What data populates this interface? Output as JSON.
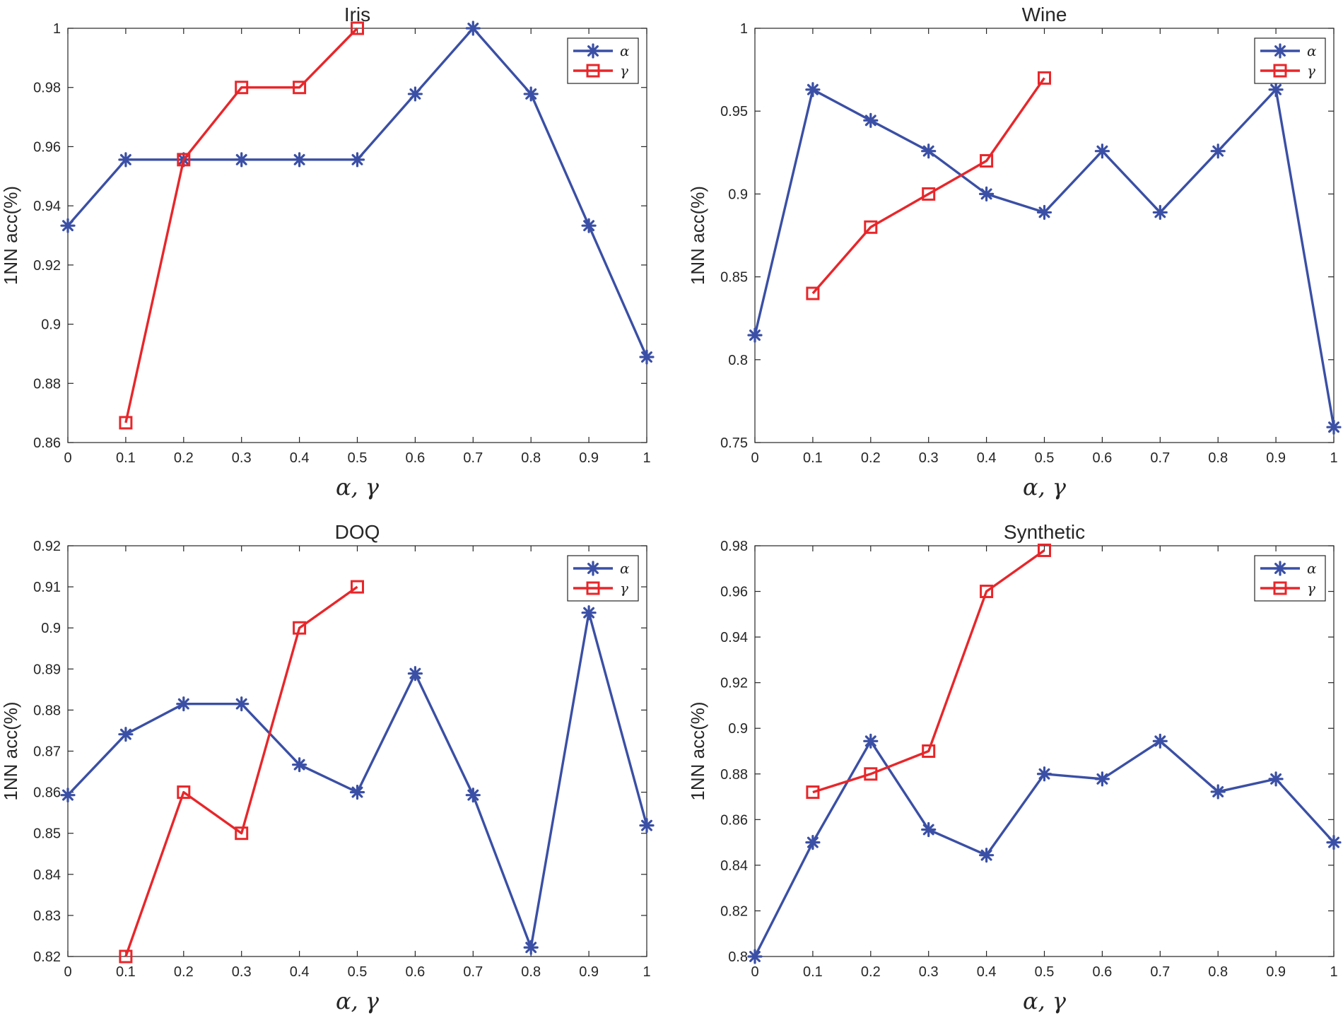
{
  "chart_data": [
    {
      "type": "line",
      "title": "Iris",
      "xlabel": "α, γ",
      "ylabel": "1NN acc(%)",
      "xlim": [
        0,
        1
      ],
      "ylim": [
        0.86,
        1
      ],
      "xticks": [
        0,
        0.1,
        0.2,
        0.3,
        0.4,
        0.5,
        0.6,
        0.7,
        0.8,
        0.9,
        1
      ],
      "xtick_labels": [
        "0",
        "0.1",
        "0.2",
        "0.3",
        "0.4",
        "0.5",
        "0.6",
        "0.7",
        "0.8",
        "0.9",
        "1"
      ],
      "yticks": [
        0.86,
        0.88,
        0.9,
        0.92,
        0.94,
        0.96,
        0.98,
        1
      ],
      "ytick_labels": [
        "0.86",
        "0.88",
        "0.9",
        "0.92",
        "0.94",
        "0.96",
        "0.98",
        "1"
      ],
      "legend_position": "top-right",
      "series": [
        {
          "name": "α",
          "marker": "asterisk",
          "color": "#3a4fa5",
          "x": [
            0,
            0.1,
            0.2,
            0.3,
            0.4,
            0.5,
            0.6,
            0.7,
            0.8,
            0.9,
            1
          ],
          "values": [
            0.9333,
            0.9556,
            0.9556,
            0.9556,
            0.9556,
            0.9556,
            0.9778,
            1.0,
            0.9778,
            0.9333,
            0.8889
          ]
        },
        {
          "name": "γ",
          "marker": "square",
          "color": "#e8262a",
          "x": [
            0.1,
            0.2,
            0.3,
            0.4,
            0.5
          ],
          "values": [
            0.8667,
            0.9556,
            0.98,
            0.98,
            1.0
          ]
        }
      ]
    },
    {
      "type": "line",
      "title": "Wine",
      "xlabel": "α, γ",
      "ylabel": "1NN acc(%)",
      "xlim": [
        0,
        1
      ],
      "ylim": [
        0.75,
        1
      ],
      "xticks": [
        0,
        0.1,
        0.2,
        0.3,
        0.4,
        0.5,
        0.6,
        0.7,
        0.8,
        0.9,
        1
      ],
      "xtick_labels": [
        "0",
        "0.1",
        "0.2",
        "0.3",
        "0.4",
        "0.5",
        "0.6",
        "0.7",
        "0.8",
        "0.9",
        "1"
      ],
      "yticks": [
        0.75,
        0.8,
        0.85,
        0.9,
        0.95,
        1
      ],
      "ytick_labels": [
        "0.75",
        "0.8",
        "0.85",
        "0.9",
        "0.95",
        "1"
      ],
      "legend_position": "top-right",
      "series": [
        {
          "name": "α",
          "marker": "asterisk",
          "color": "#3a4fa5",
          "x": [
            0,
            0.1,
            0.2,
            0.3,
            0.4,
            0.5,
            0.6,
            0.7,
            0.8,
            0.9,
            1
          ],
          "values": [
            0.8148,
            0.963,
            0.9444,
            0.9259,
            0.9,
            0.8889,
            0.9259,
            0.8889,
            0.9259,
            0.963,
            0.7593
          ]
        },
        {
          "name": "γ",
          "marker": "square",
          "color": "#e8262a",
          "x": [
            0.1,
            0.2,
            0.3,
            0.4,
            0.5
          ],
          "values": [
            0.84,
            0.88,
            0.9,
            0.92,
            0.97
          ]
        }
      ]
    },
    {
      "type": "line",
      "title": "DOQ",
      "xlabel": "α, γ",
      "ylabel": "1NN acc(%)",
      "xlim": [
        0,
        1
      ],
      "ylim": [
        0.82,
        0.92
      ],
      "xticks": [
        0,
        0.1,
        0.2,
        0.3,
        0.4,
        0.5,
        0.6,
        0.7,
        0.8,
        0.9,
        1
      ],
      "xtick_labels": [
        "0",
        "0.1",
        "0.2",
        "0.3",
        "0.4",
        "0.5",
        "0.6",
        "0.7",
        "0.8",
        "0.9",
        "1"
      ],
      "yticks": [
        0.82,
        0.83,
        0.84,
        0.85,
        0.86,
        0.87,
        0.88,
        0.89,
        0.9,
        0.91,
        0.92
      ],
      "ytick_labels": [
        "0.82",
        "0.83",
        "0.84",
        "0.85",
        "0.86",
        "0.87",
        "0.88",
        "0.89",
        "0.9",
        "0.91",
        "0.92"
      ],
      "legend_position": "top-right",
      "series": [
        {
          "name": "α",
          "marker": "asterisk",
          "color": "#3a4fa5",
          "x": [
            0,
            0.1,
            0.2,
            0.3,
            0.4,
            0.5,
            0.6,
            0.7,
            0.8,
            0.9,
            1
          ],
          "values": [
            0.8593,
            0.8741,
            0.8815,
            0.8815,
            0.8667,
            0.86,
            0.8889,
            0.8593,
            0.8222,
            0.9037,
            0.8519
          ]
        },
        {
          "name": "γ",
          "marker": "square",
          "color": "#e8262a",
          "x": [
            0.1,
            0.2,
            0.3,
            0.4,
            0.5
          ],
          "values": [
            0.82,
            0.86,
            0.85,
            0.9,
            0.91
          ]
        }
      ]
    },
    {
      "type": "line",
      "title": "Synthetic",
      "xlabel": "α, γ",
      "ylabel": "1NN acc(%)",
      "xlim": [
        0,
        1
      ],
      "ylim": [
        0.8,
        0.98
      ],
      "xticks": [
        0,
        0.1,
        0.2,
        0.3,
        0.4,
        0.5,
        0.6,
        0.7,
        0.8,
        0.9,
        1
      ],
      "xtick_labels": [
        "0",
        "0.1",
        "0.2",
        "0.3",
        "0.4",
        "0.5",
        "0.6",
        "0.7",
        "0.8",
        "0.9",
        "1"
      ],
      "yticks": [
        0.8,
        0.82,
        0.84,
        0.86,
        0.88,
        0.9,
        0.92,
        0.94,
        0.96,
        0.98
      ],
      "ytick_labels": [
        "0.8",
        "0.82",
        "0.84",
        "0.86",
        "0.88",
        "0.9",
        "0.92",
        "0.94",
        "0.96",
        "0.98"
      ],
      "legend_position": "top-right",
      "series": [
        {
          "name": "α",
          "marker": "asterisk",
          "color": "#3a4fa5",
          "x": [
            0,
            0.1,
            0.2,
            0.3,
            0.4,
            0.5,
            0.6,
            0.7,
            0.8,
            0.9,
            1
          ],
          "values": [
            0.8,
            0.85,
            0.8944,
            0.8556,
            0.8444,
            0.88,
            0.8778,
            0.8944,
            0.8722,
            0.8778,
            0.85
          ]
        },
        {
          "name": "γ",
          "marker": "square",
          "color": "#e8262a",
          "x": [
            0.1,
            0.2,
            0.3,
            0.4,
            0.5
          ],
          "values": [
            0.872,
            0.88,
            0.89,
            0.96,
            0.978
          ]
        }
      ]
    }
  ]
}
